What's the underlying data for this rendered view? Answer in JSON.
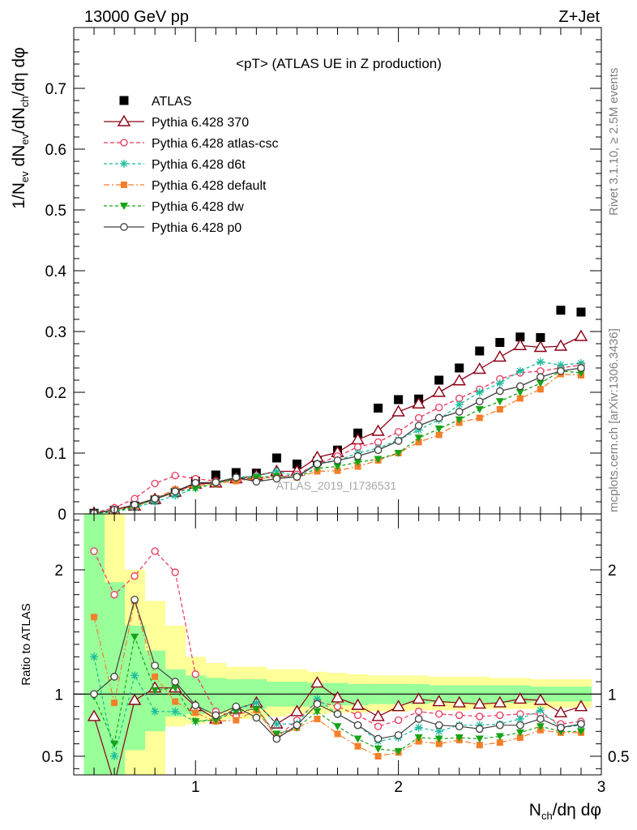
{
  "header": {
    "left": "13000 GeV pp",
    "right": "Z+Jet"
  },
  "side_labels": {
    "top": "Rivet 3.1.10, ≥ 2.5M events",
    "bottom": "mcplots.cern.ch [arXiv:1306.3436]"
  },
  "chart_data": [
    {
      "type": "scatter",
      "title": "<pT> (ATLAS UE in Z production)",
      "watermark": "ATLAS_2019_I1736531",
      "ylabel": "1/N_ev dN_ev/dN_ch/dη dφ",
      "xlim": [
        0.4,
        3.0
      ],
      "ylim": [
        0,
        0.8
      ],
      "yticks": [
        "0",
        "0.1",
        "0.2",
        "0.3",
        "0.4",
        "0.5",
        "0.6",
        "0.7"
      ],
      "legend_position": "top-left",
      "x": [
        0.5,
        0.6,
        0.7,
        0.8,
        0.9,
        1.0,
        1.1,
        1.2,
        1.3,
        1.4,
        1.5,
        1.6,
        1.7,
        1.8,
        1.9,
        2.0,
        2.1,
        2.2,
        2.3,
        2.4,
        2.5,
        2.6,
        2.7,
        2.8,
        2.9
      ],
      "series": [
        {
          "name": "ATLAS",
          "color": "#000000",
          "values": [
            0.001,
            0.006,
            0.013,
            0.023,
            0.035,
            0.054,
            0.064,
            0.068,
            0.067,
            0.092,
            0.082,
            0.087,
            0.105,
            0.133,
            0.174,
            0.188,
            0.189,
            0.22,
            0.24,
            0.268,
            0.282,
            0.291,
            0.29,
            0.335,
            0.332
          ]
        },
        {
          "name": "Pythia 6.428 370",
          "color": "#8b0015",
          "values": [
            0.001,
            0.006,
            0.013,
            0.024,
            0.036,
            0.049,
            0.051,
            0.058,
            0.063,
            0.07,
            0.07,
            0.093,
            0.101,
            0.122,
            0.136,
            0.168,
            0.181,
            0.2,
            0.219,
            0.238,
            0.258,
            0.277,
            0.274,
            0.276,
            0.292
          ]
        },
        {
          "name": "Pythia 6.428 atlas-csc",
          "color": "#e8375d",
          "values": [
            0.002,
            0.01,
            0.025,
            0.05,
            0.063,
            0.058,
            0.054,
            0.055,
            0.06,
            0.06,
            0.065,
            0.082,
            0.095,
            0.11,
            0.118,
            0.135,
            0.158,
            0.175,
            0.19,
            0.205,
            0.222,
            0.232,
            0.235,
            0.24,
            0.245
          ]
        },
        {
          "name": "Pythia 6.428 d6t",
          "color": "#1abc9c",
          "values": [
            0.001,
            0.003,
            0.01,
            0.02,
            0.03,
            0.042,
            0.05,
            0.06,
            0.062,
            0.07,
            0.062,
            0.083,
            0.088,
            0.1,
            0.108,
            0.122,
            0.138,
            0.155,
            0.18,
            0.2,
            0.215,
            0.235,
            0.25,
            0.245,
            0.248
          ]
        },
        {
          "name": "Pythia 6.428 default",
          "color": "#f37f2a",
          "values": [
            0.001,
            0.006,
            0.013,
            0.026,
            0.04,
            0.046,
            0.05,
            0.054,
            0.058,
            0.06,
            0.06,
            0.07,
            0.071,
            0.078,
            0.088,
            0.1,
            0.118,
            0.13,
            0.15,
            0.158,
            0.172,
            0.19,
            0.205,
            0.23,
            0.228
          ]
        },
        {
          "name": "Pythia 6.428 dw",
          "color": "#17a317",
          "values": [
            0.001,
            0.004,
            0.012,
            0.024,
            0.036,
            0.042,
            0.05,
            0.058,
            0.06,
            0.062,
            0.06,
            0.075,
            0.078,
            0.085,
            0.09,
            0.1,
            0.125,
            0.14,
            0.155,
            0.172,
            0.185,
            0.2,
            0.215,
            0.235,
            0.232
          ]
        },
        {
          "name": "Pythia 6.428 p0",
          "color": "#404040",
          "values": [
            0.001,
            0.007,
            0.015,
            0.025,
            0.037,
            0.051,
            0.052,
            0.06,
            0.053,
            0.058,
            0.061,
            0.082,
            0.088,
            0.095,
            0.105,
            0.12,
            0.145,
            0.158,
            0.168,
            0.185,
            0.202,
            0.21,
            0.225,
            0.235,
            0.24
          ]
        }
      ]
    },
    {
      "type": "scatter",
      "xlabel": "N_ch/dη dφ",
      "ylabel": "Ratio to ATLAS",
      "xlim": [
        0.4,
        3.0
      ],
      "ylim": [
        0.35,
        2.45
      ],
      "xticks": [
        "1",
        "2",
        "3"
      ],
      "yticks": [
        "0.5",
        "1",
        "2"
      ],
      "reference_line": 1,
      "x": [
        0.5,
        0.6,
        0.7,
        0.8,
        0.9,
        1.0,
        1.1,
        1.2,
        1.3,
        1.4,
        1.5,
        1.6,
        1.7,
        1.8,
        1.9,
        2.0,
        2.1,
        2.2,
        2.3,
        2.4,
        2.5,
        2.6,
        2.7,
        2.8,
        2.9
      ],
      "bands": {
        "yellow_color": "#ffff99",
        "green_color": "#99ff99",
        "yellow_low": [
          0.35,
          0.35,
          0.35,
          0.35,
          0.74,
          0.76,
          0.78,
          0.8,
          0.8,
          0.82,
          0.84,
          0.84,
          0.85,
          0.85,
          0.86,
          0.86,
          0.87,
          0.87,
          0.87,
          0.88,
          0.88,
          0.88,
          0.88,
          0.89,
          0.89
        ],
        "yellow_high": [
          2.45,
          2.45,
          2.0,
          1.75,
          1.55,
          1.3,
          1.25,
          1.22,
          1.22,
          1.2,
          1.2,
          1.18,
          1.17,
          1.16,
          1.15,
          1.15,
          1.15,
          1.14,
          1.14,
          1.14,
          1.13,
          1.13,
          1.12,
          1.12,
          1.12
        ],
        "green_low": [
          0.35,
          0.35,
          0.55,
          0.7,
          0.82,
          0.84,
          0.86,
          0.88,
          0.88,
          0.9,
          0.9,
          0.9,
          0.91,
          0.91,
          0.92,
          0.92,
          0.92,
          0.93,
          0.93,
          0.93,
          0.93,
          0.93,
          0.94,
          0.94,
          0.94
        ],
        "green_high": [
          2.45,
          1.9,
          1.55,
          1.35,
          1.2,
          1.15,
          1.13,
          1.12,
          1.12,
          1.1,
          1.1,
          1.09,
          1.09,
          1.08,
          1.08,
          1.08,
          1.08,
          1.07,
          1.07,
          1.07,
          1.07,
          1.07,
          1.06,
          1.06,
          1.06
        ]
      },
      "series": [
        {
          "name": "Pythia 6.428 370",
          "color": "#8b0015",
          "values": [
            0.82,
            0.28,
            0.95,
            1.05,
            1.05,
            0.9,
            0.8,
            0.88,
            0.93,
            0.76,
            0.86,
            1.09,
            0.97,
            0.91,
            0.82,
            0.9,
            0.96,
            0.94,
            0.93,
            0.92,
            0.93,
            0.96,
            0.95,
            0.85,
            0.9
          ]
        },
        {
          "name": "Pythia 6.428 atlas-csc",
          "color": "#e8375d",
          "values": [
            2.15,
            1.8,
            1.95,
            2.15,
            1.98,
            1.16,
            0.86,
            0.82,
            0.9,
            0.65,
            0.79,
            0.94,
            0.9,
            0.83,
            0.74,
            0.79,
            0.86,
            0.84,
            0.83,
            0.82,
            0.83,
            0.84,
            0.84,
            0.76,
            0.78
          ]
        },
        {
          "name": "Pythia 6.428 d6t",
          "color": "#1abc9c",
          "values": [
            1.3,
            0.5,
            1.15,
            0.86,
            0.86,
            0.78,
            0.8,
            0.88,
            0.93,
            0.76,
            0.76,
            0.96,
            0.84,
            0.75,
            0.62,
            0.65,
            0.73,
            0.7,
            0.75,
            0.75,
            0.76,
            0.8,
            0.87,
            0.73,
            0.75
          ]
        },
        {
          "name": "Pythia 6.428 default",
          "color": "#f37f2a",
          "values": [
            1.62,
            0.93,
            1.75,
            1.14,
            0.94,
            0.85,
            0.78,
            0.79,
            0.87,
            0.65,
            0.73,
            0.8,
            0.68,
            0.58,
            0.5,
            0.53,
            0.62,
            0.6,
            0.63,
            0.59,
            0.61,
            0.65,
            0.71,
            0.69,
            0.69
          ]
        },
        {
          "name": "Pythia 6.428 dw",
          "color": "#17a317",
          "values": [
            0.98,
            0.6,
            1.46,
            1.03,
            1.05,
            0.78,
            0.79,
            0.86,
            0.88,
            0.68,
            0.73,
            0.86,
            0.74,
            0.64,
            0.56,
            0.54,
            0.65,
            0.64,
            0.65,
            0.64,
            0.66,
            0.69,
            0.74,
            0.7,
            0.7
          ]
        },
        {
          "name": "Pythia 6.428 p0",
          "color": "#404040",
          "values": [
            1.0,
            1.14,
            1.76,
            1.23,
            1.1,
            0.91,
            0.83,
            0.9,
            0.81,
            0.64,
            0.75,
            0.92,
            0.84,
            0.75,
            0.64,
            0.67,
            0.8,
            0.75,
            0.74,
            0.72,
            0.75,
            0.75,
            0.8,
            0.73,
            0.76
          ]
        }
      ]
    }
  ]
}
